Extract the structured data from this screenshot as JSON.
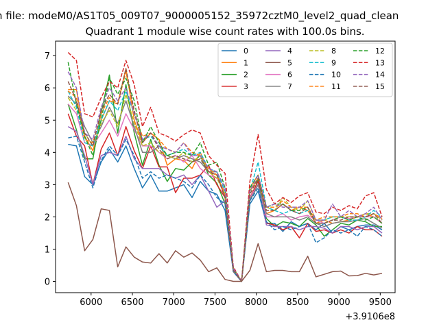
{
  "chart_data": {
    "type": "line",
    "suptitle": "n file: modeM0/AS1T05_009T07_9000005152_35972cztM0_level2_quad_clean",
    "title": "Quadrant 1 module wise count rates with 100.0s bins.",
    "xlabel": "",
    "ylabel": "",
    "x_offset_label": "+3.9106e8",
    "xlim": [
      5570,
      9680
    ],
    "ylim": [
      -0.35,
      7.45
    ],
    "xticks": [
      6000,
      6500,
      7000,
      7500,
      8000,
      8500,
      9000,
      9500
    ],
    "yticks": [
      0,
      1,
      2,
      3,
      4,
      5,
      6,
      7
    ],
    "legend_position": "top-right",
    "x": [
      5722,
      5822,
      5922,
      6022,
      6122,
      6222,
      6322,
      6422,
      6522,
      6622,
      6722,
      6822,
      6922,
      7022,
      7122,
      7222,
      7322,
      7422,
      7522,
      7622,
      7722,
      7822,
      7922,
      8022,
      8122,
      8222,
      8322,
      8422,
      8522,
      8622,
      8722,
      8822,
      8922,
      9022,
      9122,
      9222,
      9322,
      9422,
      9522
    ],
    "series": [
      {
        "name": "0",
        "color": "#1f77b4",
        "dash": "solid",
        "values": [
          4.25,
          4.2,
          3.25,
          3.0,
          3.7,
          4.1,
          3.7,
          4.2,
          3.5,
          2.9,
          3.3,
          2.8,
          2.8,
          2.9,
          3.0,
          2.6,
          3.1,
          2.8,
          2.7,
          2.2,
          0.3,
          0.0,
          2.4,
          2.8,
          1.8,
          1.8,
          1.55,
          1.85,
          1.7,
          1.8,
          1.6,
          1.8,
          1.5,
          1.7,
          1.6,
          1.7,
          1.75,
          1.75,
          1.6
        ]
      },
      {
        "name": "1",
        "color": "#ff7f0e",
        "dash": "solid",
        "values": [
          5.95,
          5.95,
          4.5,
          4.05,
          5.0,
          5.6,
          5.5,
          6.6,
          5.0,
          4.3,
          4.6,
          4.4,
          3.6,
          3.8,
          3.75,
          3.5,
          4.0,
          3.4,
          3.3,
          2.6,
          0.4,
          0.0,
          2.8,
          3.2,
          2.1,
          2.2,
          2.4,
          2.2,
          2.3,
          2.2,
          1.8,
          1.9,
          1.8,
          1.85,
          1.9,
          2.0,
          2.1,
          2.0,
          1.8
        ]
      },
      {
        "name": "2",
        "color": "#2ca02c",
        "dash": "solid",
        "values": [
          5.5,
          4.7,
          3.8,
          3.8,
          5.25,
          6.4,
          4.6,
          6.1,
          4.6,
          3.6,
          4.4,
          3.6,
          3.1,
          3.5,
          3.45,
          3.7,
          3.9,
          3.3,
          3.05,
          2.4,
          0.35,
          0.0,
          2.5,
          3.15,
          1.95,
          1.7,
          1.85,
          1.8,
          1.7,
          1.95,
          1.75,
          1.4,
          1.6,
          1.8,
          1.75,
          1.9,
          1.85,
          1.7,
          1.7
        ]
      },
      {
        "name": "3",
        "color": "#d62728",
        "dash": "solid",
        "values": [
          5.2,
          4.5,
          4.2,
          3.0,
          4.1,
          4.6,
          3.9,
          4.8,
          4.05,
          3.5,
          4.2,
          3.55,
          3.55,
          2.75,
          3.2,
          3.2,
          3.3,
          3.6,
          3.0,
          2.6,
          0.3,
          0.0,
          2.6,
          3.1,
          1.8,
          1.75,
          1.6,
          1.7,
          1.35,
          1.8,
          1.55,
          1.6,
          1.5,
          1.6,
          1.5,
          1.7,
          1.6,
          1.6,
          1.4
        ]
      },
      {
        "name": "4",
        "color": "#9467bd",
        "dash": "solid",
        "values": [
          4.8,
          4.65,
          3.9,
          3.0,
          3.9,
          4.0,
          3.9,
          4.5,
          3.8,
          3.5,
          3.5,
          3.5,
          3.3,
          3.2,
          3.3,
          3.0,
          3.3,
          2.8,
          2.3,
          2.5,
          0.3,
          0.0,
          2.5,
          3.0,
          1.75,
          1.7,
          1.7,
          1.7,
          1.6,
          1.7,
          1.7,
          1.65,
          1.5,
          1.7,
          1.7,
          1.6,
          1.7,
          1.7,
          1.5
        ]
      },
      {
        "name": "5",
        "color": "#8c564b",
        "dash": "solid",
        "values": [
          3.07,
          2.35,
          0.95,
          1.3,
          2.25,
          2.2,
          0.45,
          1.07,
          0.75,
          0.6,
          0.57,
          0.86,
          0.57,
          0.95,
          0.75,
          0.88,
          0.66,
          0.3,
          0.42,
          0.06,
          0.0,
          0.0,
          0.34,
          1.17,
          0.3,
          0.34,
          0.34,
          0.3,
          0.3,
          0.78,
          0.14,
          0.22,
          0.3,
          0.32,
          0.17,
          0.18,
          0.25,
          0.2,
          0.25
        ]
      },
      {
        "name": "6",
        "color": "#e377c2",
        "dash": "solid",
        "values": [
          5.5,
          5.2,
          4.3,
          4.2,
          4.6,
          5.0,
          4.5,
          5.2,
          4.7,
          4.2,
          4.2,
          4.0,
          3.8,
          3.9,
          3.7,
          3.9,
          3.5,
          3.3,
          3.2,
          2.8,
          0.35,
          0.0,
          2.6,
          3.0,
          2.0,
          2.0,
          2.1,
          1.9,
          2.0,
          2.05,
          1.9,
          1.8,
          1.9,
          2.0,
          1.95,
          2.0,
          2.0,
          2.0,
          1.8
        ]
      },
      {
        "name": "7",
        "color": "#7f7f7f",
        "dash": "solid",
        "values": [
          5.75,
          5.5,
          4.8,
          4.3,
          4.8,
          5.4,
          4.9,
          5.6,
          4.8,
          4.0,
          4.0,
          4.2,
          3.9,
          3.8,
          3.9,
          3.8,
          3.7,
          3.4,
          3.4,
          2.6,
          0.3,
          0.0,
          2.5,
          3.0,
          2.1,
          2.0,
          2.0,
          2.0,
          1.9,
          2.0,
          1.8,
          1.7,
          1.8,
          1.85,
          1.85,
          1.9,
          1.95,
          1.8,
          1.65
        ]
      },
      {
        "name": "8",
        "color": "#bcbd22",
        "dash": "dashed",
        "values": [
          5.7,
          5.3,
          4.6,
          4.2,
          4.9,
          5.3,
          4.8,
          5.8,
          4.9,
          4.2,
          4.3,
          4.0,
          3.9,
          3.8,
          4.0,
          3.7,
          3.9,
          3.4,
          3.2,
          2.7,
          0.35,
          0.0,
          2.7,
          3.2,
          2.3,
          2.2,
          2.6,
          2.3,
          2.2,
          2.5,
          1.9,
          1.9,
          2.0,
          2.0,
          2.0,
          2.0,
          2.1,
          2.1,
          1.9
        ]
      },
      {
        "name": "9",
        "color": "#17becf",
        "dash": "dashed",
        "values": [
          5.9,
          5.4,
          4.3,
          4.2,
          5.0,
          5.6,
          5.3,
          5.9,
          5.2,
          4.4,
          4.5,
          4.2,
          3.9,
          4.0,
          4.1,
          3.9,
          4.0,
          3.5,
          3.4,
          2.8,
          0.35,
          0.0,
          2.8,
          3.7,
          2.3,
          2.2,
          2.1,
          2.2,
          2.1,
          2.2,
          1.9,
          1.9,
          2.0,
          2.0,
          1.9,
          1.9,
          2.0,
          2.2,
          2.0
        ]
      },
      {
        "name": "10",
        "color": "#1f77b4",
        "dash": "dashed",
        "values": [
          4.45,
          4.5,
          3.7,
          2.9,
          3.75,
          4.2,
          3.9,
          4.4,
          3.9,
          3.2,
          3.4,
          3.2,
          3.3,
          3.2,
          3.1,
          2.9,
          3.3,
          3.0,
          2.6,
          2.4,
          0.3,
          0.0,
          2.5,
          2.9,
          1.85,
          1.6,
          1.7,
          1.6,
          1.7,
          1.8,
          1.2,
          1.35,
          1.6,
          1.5,
          1.6,
          1.4,
          1.7,
          1.6,
          1.4
        ]
      },
      {
        "name": "11",
        "color": "#ff7f0e",
        "dash": "dashed",
        "values": [
          5.9,
          5.7,
          4.4,
          4.3,
          5.2,
          5.7,
          5.5,
          6.5,
          5.2,
          4.5,
          4.6,
          4.4,
          4.1,
          4.0,
          4.3,
          4.0,
          3.9,
          3.5,
          3.3,
          2.7,
          0.4,
          0.0,
          2.9,
          3.3,
          2.3,
          2.3,
          2.5,
          2.3,
          2.3,
          2.3,
          1.9,
          2.0,
          2.0,
          2.0,
          2.1,
          2.1,
          2.0,
          2.1,
          1.95
        ]
      },
      {
        "name": "12",
        "color": "#2ca02c",
        "dash": "dashed",
        "values": [
          6.8,
          5.5,
          4.5,
          3.9,
          5.0,
          6.3,
          5.8,
          6.3,
          5.6,
          4.3,
          4.8,
          4.3,
          3.9,
          4.0,
          4.0,
          3.9,
          4.3,
          3.6,
          3.7,
          2.9,
          0.4,
          0.0,
          2.9,
          3.3,
          2.3,
          2.4,
          2.4,
          2.2,
          2.2,
          2.3,
          1.8,
          1.8,
          1.9,
          2.0,
          1.9,
          2.0,
          1.9,
          2.0,
          1.8
        ]
      },
      {
        "name": "13",
        "color": "#d62728",
        "dash": "dashed",
        "values": [
          7.1,
          6.85,
          5.2,
          5.1,
          5.7,
          6.2,
          6.0,
          6.85,
          6.1,
          4.8,
          5.4,
          4.6,
          4.5,
          4.35,
          4.55,
          4.7,
          4.6,
          3.9,
          3.6,
          3.35,
          0.45,
          0.0,
          3.1,
          4.55,
          2.85,
          2.4,
          2.6,
          2.45,
          2.65,
          2.75,
          2.15,
          2.1,
          2.3,
          2.2,
          2.35,
          2.25,
          2.65,
          2.75,
          2.0
        ]
      },
      {
        "name": "14",
        "color": "#9467bd",
        "dash": "dashed",
        "values": [
          6.5,
          6.0,
          4.6,
          4.4,
          5.4,
          6.0,
          5.6,
          6.0,
          5.2,
          4.4,
          4.6,
          4.2,
          4.1,
          4.0,
          4.3,
          3.9,
          3.9,
          3.5,
          3.4,
          2.9,
          0.4,
          0.0,
          2.8,
          3.3,
          2.3,
          2.4,
          2.3,
          2.3,
          2.3,
          2.5,
          1.9,
          1.9,
          2.4,
          2.0,
          2.2,
          2.0,
          2.1,
          2.3,
          1.9
        ]
      },
      {
        "name": "15",
        "color": "#8c564b",
        "dash": "dashed",
        "values": [
          6.2,
          5.6,
          4.6,
          4.2,
          5.3,
          5.8,
          5.5,
          6.6,
          5.3,
          4.3,
          4.6,
          4.1,
          3.8,
          3.9,
          3.8,
          3.7,
          3.8,
          3.4,
          3.3,
          2.6,
          0.35,
          0.0,
          2.7,
          3.2,
          2.2,
          2.2,
          2.4,
          2.2,
          2.1,
          2.3,
          1.8,
          1.8,
          1.9,
          1.9,
          2.0,
          2.0,
          2.0,
          2.1,
          1.8
        ]
      }
    ]
  }
}
